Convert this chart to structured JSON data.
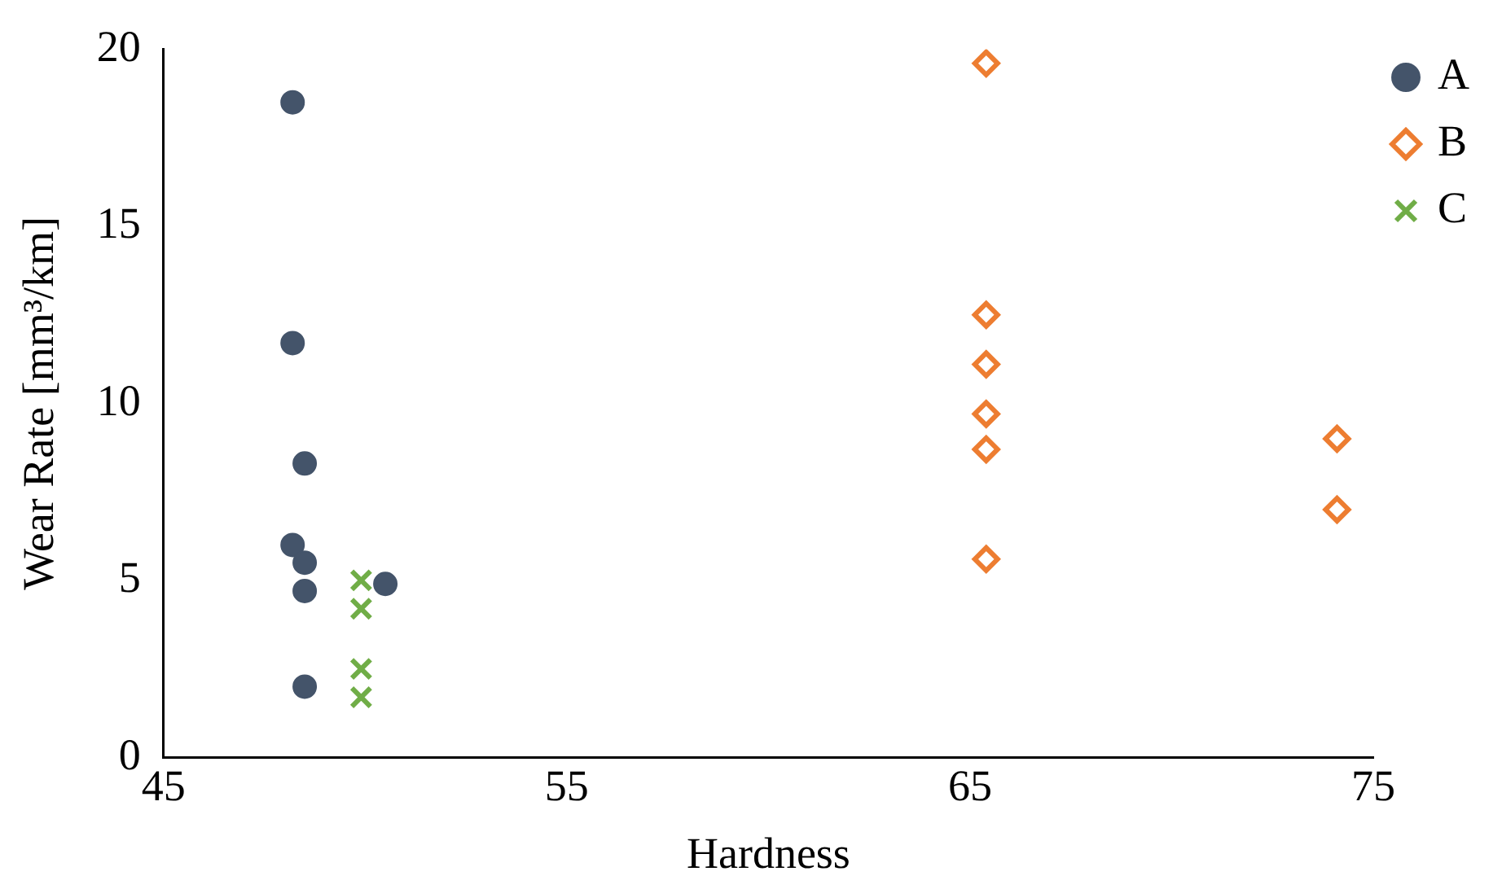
{
  "chart_data": {
    "type": "scatter",
    "xlabel": "Hardness",
    "ylabel": "Wear Rate [mm³/km]",
    "xlim": [
      45,
      75
    ],
    "xticks": [
      45,
      55,
      65,
      75
    ],
    "ylim": [
      0,
      20
    ],
    "yticks": [
      0,
      5,
      10,
      15,
      20
    ],
    "grid": false,
    "legend": "right",
    "series": [
      {
        "name": "A",
        "color": "#44546a",
        "marker": "circle",
        "x": [
          48.2,
          48.2,
          48.5,
          48.2,
          48.5,
          48.5,
          48.5,
          50.5
        ],
        "values": [
          18.5,
          11.7,
          8.3,
          6.0,
          5.5,
          4.7,
          2.0,
          4.9
        ]
      },
      {
        "name": "B",
        "color": "#ed7d31",
        "marker": "diamond",
        "x": [
          65.4,
          65.4,
          65.4,
          65.4,
          65.4,
          65.4,
          74.1,
          74.1
        ],
        "values": [
          19.6,
          12.5,
          11.1,
          9.7,
          8.7,
          5.6,
          9.0,
          7.0
        ]
      },
      {
        "name": "C",
        "color": "#70ad47",
        "marker": "cross",
        "x": [
          49.9,
          49.9,
          49.9,
          49.9
        ],
        "values": [
          5.0,
          4.2,
          2.5,
          1.7
        ]
      }
    ]
  }
}
